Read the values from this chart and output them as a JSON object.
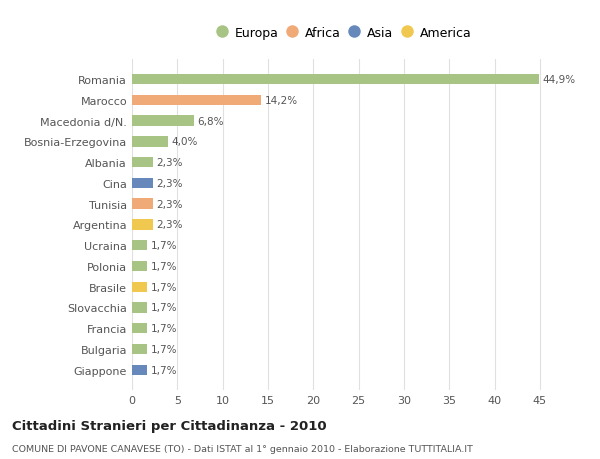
{
  "categories": [
    "Romania",
    "Marocco",
    "Macedonia d/N.",
    "Bosnia-Erzegovina",
    "Albania",
    "Cina",
    "Tunisia",
    "Argentina",
    "Ucraina",
    "Polonia",
    "Brasile",
    "Slovacchia",
    "Francia",
    "Bulgaria",
    "Giappone"
  ],
  "values": [
    44.9,
    14.2,
    6.8,
    4.0,
    2.3,
    2.3,
    2.3,
    2.3,
    1.7,
    1.7,
    1.7,
    1.7,
    1.7,
    1.7,
    1.7
  ],
  "labels": [
    "44,9%",
    "14,2%",
    "6,8%",
    "4,0%",
    "2,3%",
    "2,3%",
    "2,3%",
    "2,3%",
    "1,7%",
    "1,7%",
    "1,7%",
    "1,7%",
    "1,7%",
    "1,7%",
    "1,7%"
  ],
  "colors": [
    "#a8c484",
    "#f0aa78",
    "#a8c484",
    "#a8c484",
    "#a8c484",
    "#6688bb",
    "#f0aa78",
    "#f0c850",
    "#a8c484",
    "#a8c484",
    "#f0c850",
    "#a8c484",
    "#a8c484",
    "#a8c484",
    "#6688bb"
  ],
  "legend_labels": [
    "Europa",
    "Africa",
    "Asia",
    "America"
  ],
  "legend_colors": [
    "#a8c484",
    "#f0aa78",
    "#6688bb",
    "#f0c850"
  ],
  "title": "Cittadini Stranieri per Cittadinanza - 2010",
  "subtitle": "COMUNE DI PAVONE CANAVESE (TO) - Dati ISTAT al 1° gennaio 2010 - Elaborazione TUTTITALIA.IT",
  "xlim": [
    0,
    47
  ],
  "xticks": [
    0,
    5,
    10,
    15,
    20,
    25,
    30,
    35,
    40,
    45
  ],
  "background_color": "#ffffff",
  "grid_color": "#e0e0e0"
}
